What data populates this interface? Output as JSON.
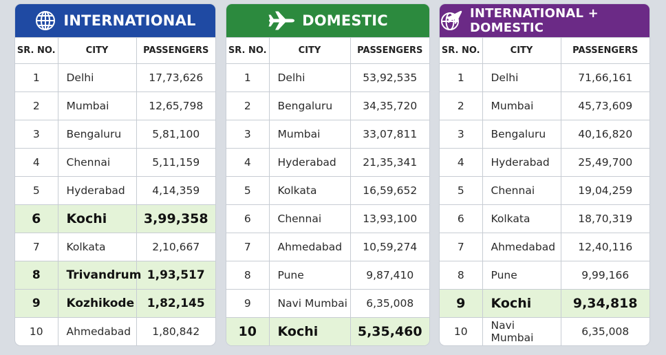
{
  "columns": {
    "sr": "SR. NO.",
    "city": "CITY",
    "passengers": "PASSENGERS"
  },
  "colors": {
    "international": "#1f4aa3",
    "domestic": "#2c8a3e",
    "combined": "#6b2a86",
    "highlight": "#e4f3d8"
  },
  "tables": [
    {
      "title": "INTERNATIONAL",
      "icon": "globe-icon",
      "rows": [
        {
          "sr": "1",
          "city": "Delhi",
          "passengers": "17,73,626",
          "highlight": false
        },
        {
          "sr": "2",
          "city": "Mumbai",
          "passengers": "12,65,798",
          "highlight": false
        },
        {
          "sr": "3",
          "city": "Bengaluru",
          "passengers": "5,81,100",
          "highlight": false
        },
        {
          "sr": "4",
          "city": "Chennai",
          "passengers": "5,11,159",
          "highlight": false
        },
        {
          "sr": "5",
          "city": "Hyderabad",
          "passengers": "4,14,359",
          "highlight": false
        },
        {
          "sr": "6",
          "city": "Kochi",
          "passengers": "3,99,358",
          "highlight": true
        },
        {
          "sr": "7",
          "city": "Kolkata",
          "passengers": "2,10,667",
          "highlight": false
        },
        {
          "sr": "8",
          "city": "Trivandrum",
          "passengers": "1,93,517",
          "highlight": true
        },
        {
          "sr": "9",
          "city": "Kozhikode",
          "passengers": "1,82,145",
          "highlight": true
        },
        {
          "sr": "10",
          "city": "Ahmedabad",
          "passengers": "1,80,842",
          "highlight": false
        }
      ]
    },
    {
      "title": "DOMESTIC",
      "icon": "airplane-icon",
      "rows": [
        {
          "sr": "1",
          "city": "Delhi",
          "passengers": "53,92,535",
          "highlight": false
        },
        {
          "sr": "2",
          "city": "Bengaluru",
          "passengers": "34,35,720",
          "highlight": false
        },
        {
          "sr": "3",
          "city": "Mumbai",
          "passengers": "33,07,811",
          "highlight": false
        },
        {
          "sr": "4",
          "city": "Hyderabad",
          "passengers": "21,35,341",
          "highlight": false
        },
        {
          "sr": "5",
          "city": "Kolkata",
          "passengers": "16,59,652",
          "highlight": false
        },
        {
          "sr": "6",
          "city": "Chennai",
          "passengers": "13,93,100",
          "highlight": false
        },
        {
          "sr": "7",
          "city": "Ahmedabad",
          "passengers": "10,59,274",
          "highlight": false
        },
        {
          "sr": "8",
          "city": "Pune",
          "passengers": "9,87,410",
          "highlight": false
        },
        {
          "sr": "9",
          "city": "Navi Mumbai",
          "passengers": "6,35,008",
          "highlight": false
        },
        {
          "sr": "10",
          "city": "Kochi",
          "passengers": "5,35,460",
          "highlight": true
        }
      ]
    },
    {
      "title": "INTERNATIONAL + DOMESTIC",
      "icon": "globe-plane-icon",
      "rows": [
        {
          "sr": "1",
          "city": "Delhi",
          "passengers": "71,66,161",
          "highlight": false
        },
        {
          "sr": "2",
          "city": "Mumbai",
          "passengers": "45,73,609",
          "highlight": false
        },
        {
          "sr": "3",
          "city": "Bengaluru",
          "passengers": "40,16,820",
          "highlight": false
        },
        {
          "sr": "4",
          "city": "Hyderabad",
          "passengers": "25,49,700",
          "highlight": false
        },
        {
          "sr": "5",
          "city": "Chennai",
          "passengers": "19,04,259",
          "highlight": false
        },
        {
          "sr": "6",
          "city": "Kolkata",
          "passengers": "18,70,319",
          "highlight": false
        },
        {
          "sr": "7",
          "city": "Ahmedabad",
          "passengers": "12,40,116",
          "highlight": false
        },
        {
          "sr": "8",
          "city": "Pune",
          "passengers": "9,99,166",
          "highlight": false
        },
        {
          "sr": "9",
          "city": "Kochi",
          "passengers": "9,34,818",
          "highlight": true
        },
        {
          "sr": "10",
          "city": "Navi Mumbai",
          "passengers": "6,35,008",
          "highlight": false
        }
      ]
    }
  ]
}
